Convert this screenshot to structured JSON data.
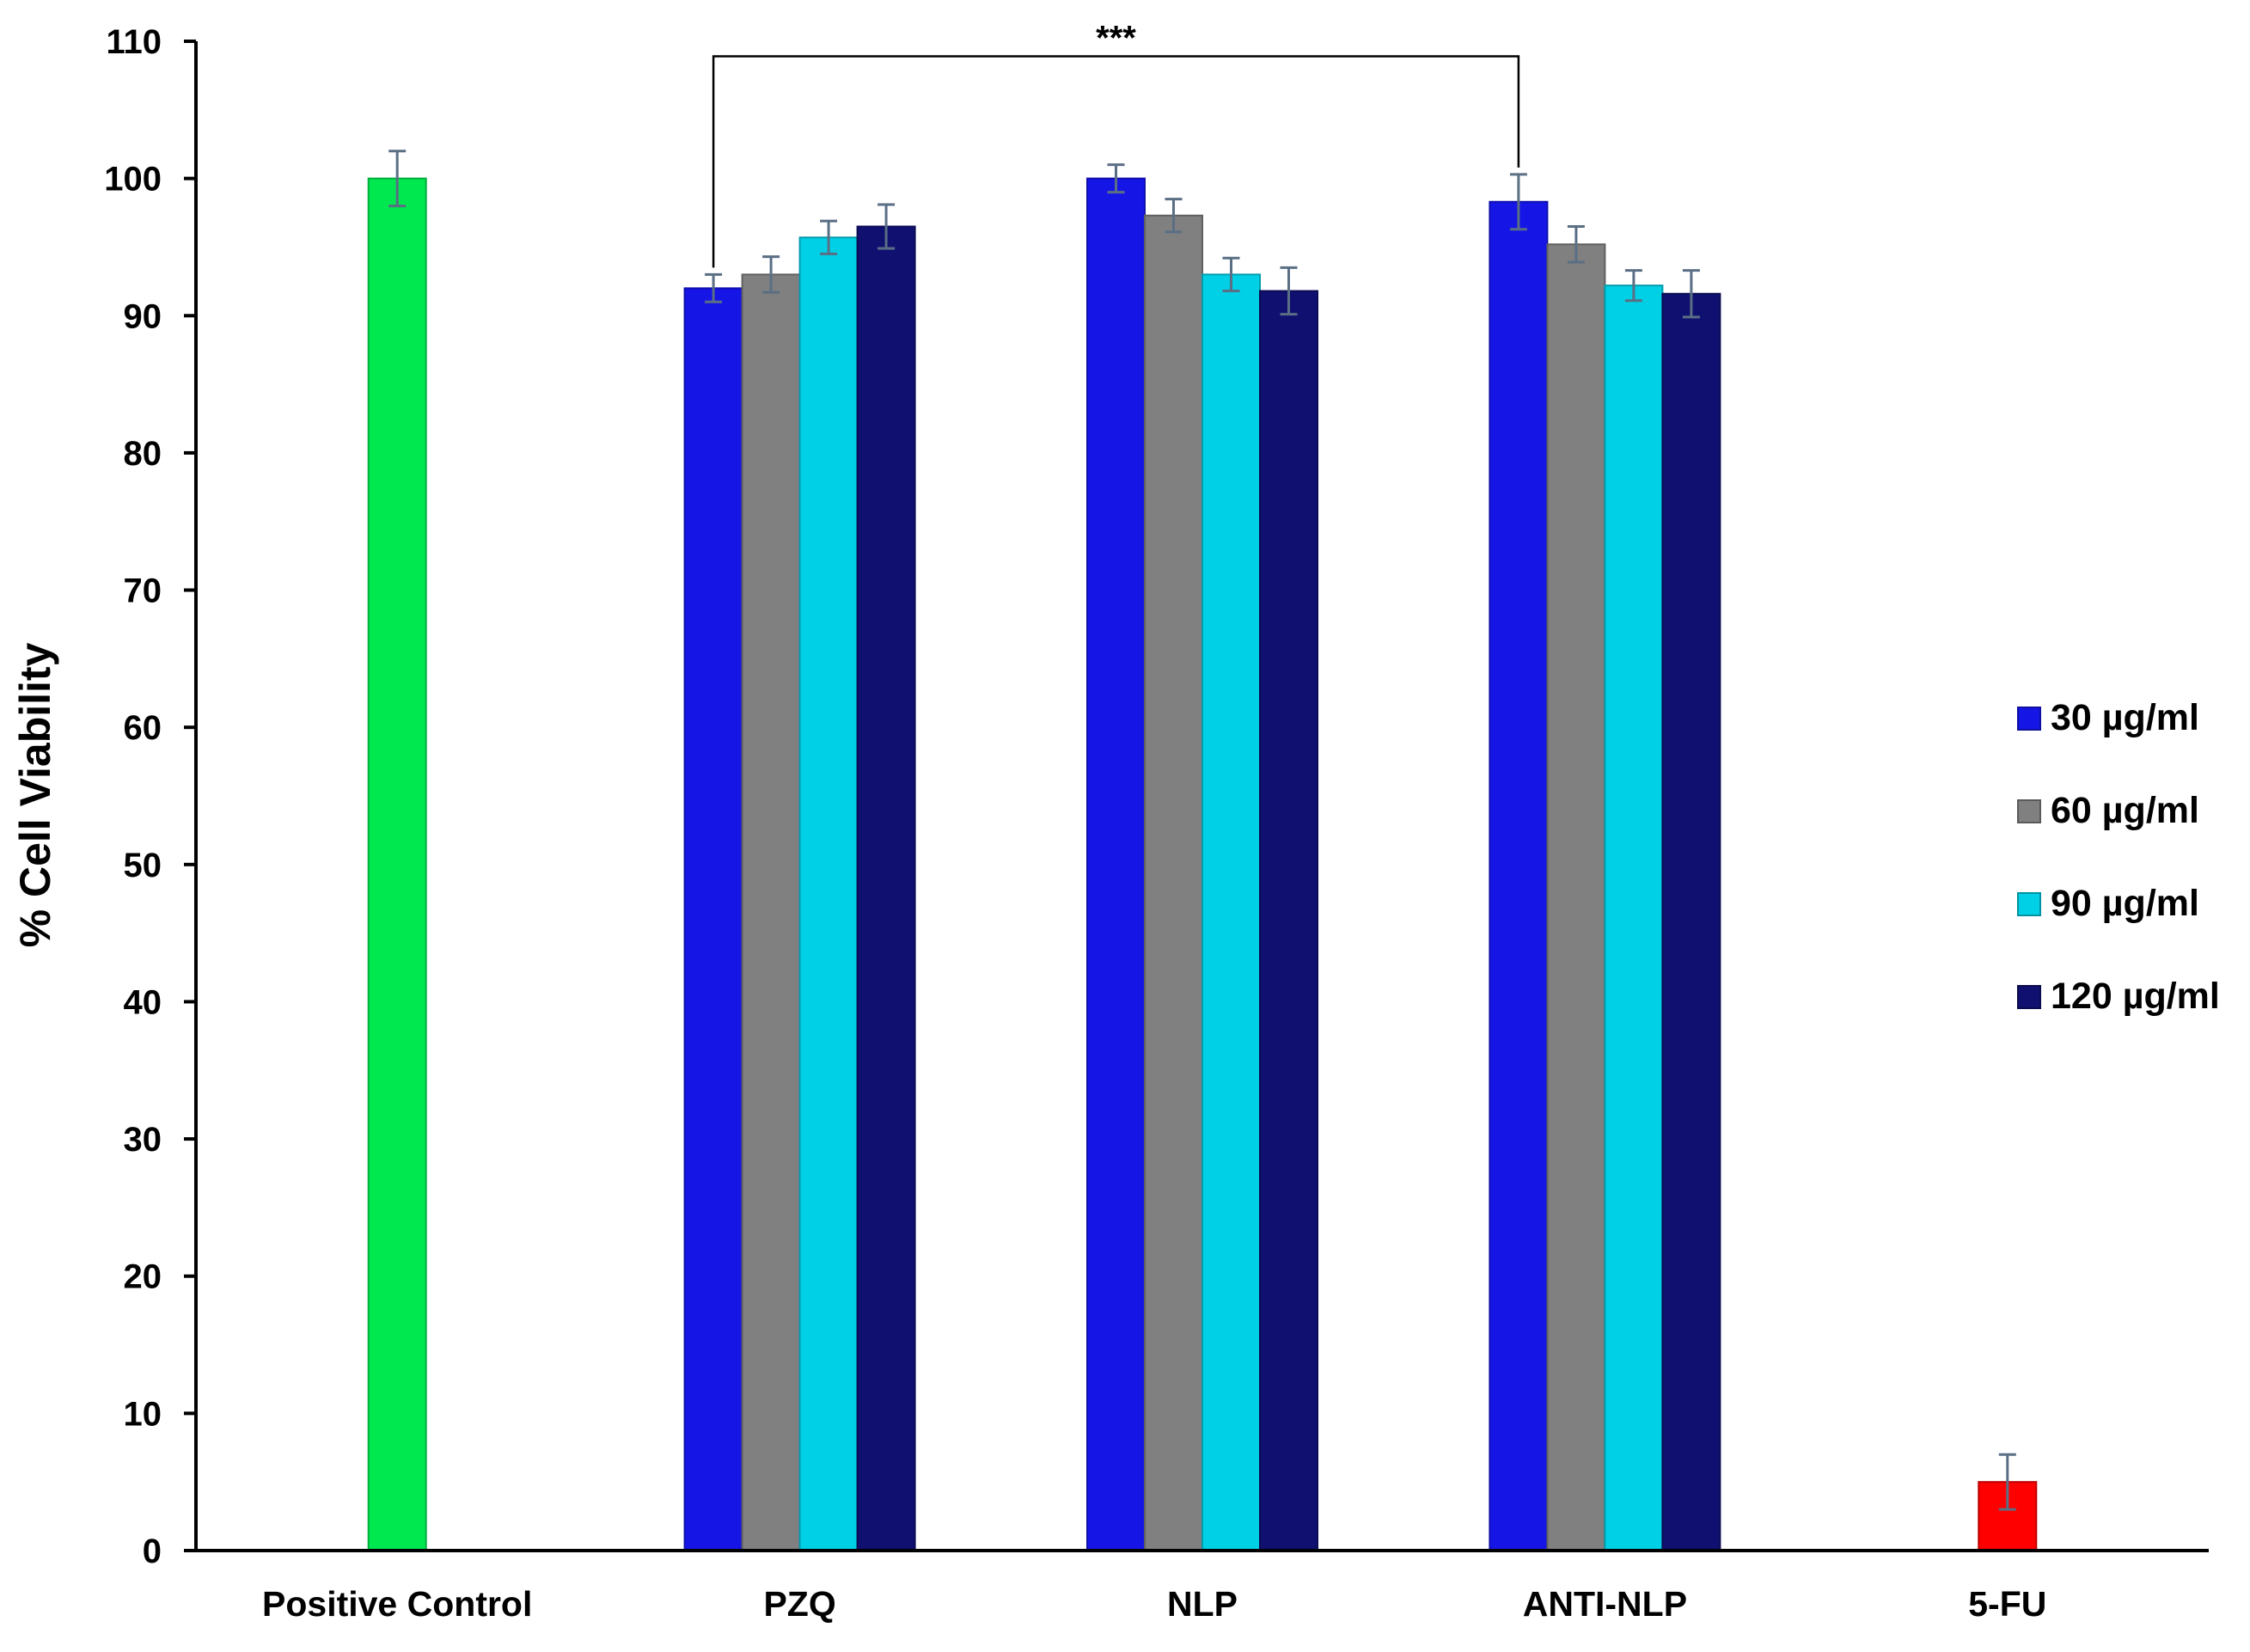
{
  "chart_data": {
    "type": "bar",
    "title": "",
    "xlabel": "",
    "ylabel": "% Cell Viability",
    "ylim": [
      0,
      110
    ],
    "yticks": [
      0,
      10,
      20,
      30,
      40,
      50,
      60,
      70,
      80,
      90,
      100,
      110
    ],
    "grid": false,
    "legend_position": "right",
    "categories": [
      "Positive Control",
      "PZQ",
      "NLP",
      "ANTI-NLP",
      "5-FU"
    ],
    "series": [
      {
        "name": "30 µg/ml",
        "color": "#1515e6",
        "values": [
          null,
          92.0,
          100.0,
          98.3,
          null
        ],
        "errors": [
          null,
          1.0,
          1.0,
          2.0,
          null
        ]
      },
      {
        "name": "60 µg/ml",
        "color": "#808080",
        "values": [
          null,
          93.0,
          97.3,
          95.2,
          null
        ],
        "errors": [
          null,
          1.3,
          1.2,
          1.3,
          null
        ]
      },
      {
        "name": "90 µg/ml",
        "color": "#00d0e6",
        "values": [
          null,
          95.7,
          93.0,
          92.2,
          null
        ],
        "errors": [
          null,
          1.2,
          1.2,
          1.1,
          null
        ]
      },
      {
        "name": "120 µg/ml",
        "color": "#101070",
        "values": [
          null,
          96.5,
          91.8,
          91.6,
          null
        ],
        "errors": [
          null,
          1.6,
          1.7,
          1.7,
          null
        ]
      }
    ],
    "single_bars": [
      {
        "category": "Positive Control",
        "value": 100.0,
        "error": 2.0,
        "color": "#00e850"
      },
      {
        "category": "5-FU",
        "value": 5.0,
        "error": 2.0,
        "color": "#ff0000"
      }
    ],
    "significance": {
      "label": "***",
      "from": {
        "category": "PZQ",
        "series": "30 µg/ml"
      },
      "to": {
        "category": "ANTI-NLP",
        "series": "30 µg/ml"
      },
      "level": 108.9
    }
  }
}
